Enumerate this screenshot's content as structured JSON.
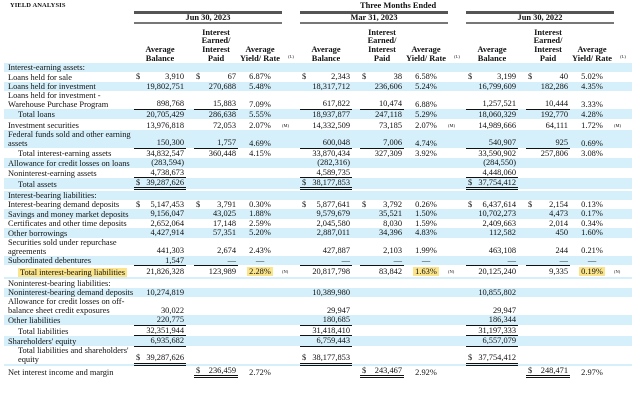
{
  "title": "YIELD ANALYSIS",
  "super_header": "Three Months Ended",
  "periods": [
    "Jun 30, 2023",
    "Mar 31, 2023",
    "Jun 30, 2022"
  ],
  "col_headers": {
    "balance": "Average Balance",
    "interest": "Interest Earned/ Interest Paid",
    "rate": "Average Yield/ Rate",
    "note": "(L)"
  },
  "highlight_color": "#fbe48a",
  "stripe_color": "#d5f0fb",
  "rows": [
    {
      "label": "Interest-earning assets:",
      "p": []
    },
    {
      "label": "Loans held for sale",
      "p": [
        {
          "bc": "$",
          "b": "3,910",
          "ic": "$",
          "i": "67",
          "r": "6.87%"
        },
        {
          "bc": "$",
          "b": "2,343",
          "ic": "$",
          "i": "38",
          "r": "6.58%"
        },
        {
          "bc": "$",
          "b": "3,199",
          "ic": "$",
          "i": "40",
          "r": "5.02%"
        }
      ]
    },
    {
      "label": "Loans held for investment",
      "p": [
        {
          "b": "19,802,751",
          "i": "270,688",
          "r": "5.48%"
        },
        {
          "b": "18,317,712",
          "i": "236,606",
          "r": "5.24%"
        },
        {
          "b": "16,799,609",
          "i": "182,286",
          "r": "4.35%"
        }
      ]
    },
    {
      "label": "Loans held for investment - Warehouse Purchase Program",
      "rule": "single",
      "p": [
        {
          "b": "898,768",
          "i": "15,883",
          "r": "7.09%"
        },
        {
          "b": "617,822",
          "i": "10,474",
          "r": "6.88%"
        },
        {
          "b": "1,257,521",
          "i": "10,444",
          "r": "3.33%"
        }
      ]
    },
    {
      "label": "Total loans",
      "indent": true,
      "p": [
        {
          "b": "20,705,429",
          "i": "286,638",
          "r": "5.55%"
        },
        {
          "b": "18,937,877",
          "i": "247,118",
          "r": "5.29%"
        },
        {
          "b": "18,060,329",
          "i": "192,770",
          "r": "4.28%"
        }
      ]
    },
    {
      "label": "Investment securities",
      "p": [
        {
          "b": "13,976,818",
          "i": "72,053",
          "r": "2.07%",
          "n": "(M)"
        },
        {
          "b": "14,332,509",
          "i": "73,185",
          "r": "2.07%",
          "n": "(M)"
        },
        {
          "b": "14,989,666",
          "i": "64,111",
          "r": "1.72%",
          "n": "(M)"
        }
      ]
    },
    {
      "label": "Federal funds sold and other earning assets",
      "rule": "single",
      "p": [
        {
          "b": "150,300",
          "i": "1,757",
          "r": "4.69%"
        },
        {
          "b": "600,048",
          "i": "7,006",
          "r": "4.74%"
        },
        {
          "b": "540,907",
          "i": "925",
          "r": "0.69%"
        }
      ]
    },
    {
      "label": "Total interest-earning assets",
      "indent": true,
      "p": [
        {
          "b": "34,832,547",
          "i": "360,448",
          "r": "4.15%"
        },
        {
          "b": "33,870,434",
          "i": "327,309",
          "r": "3.92%"
        },
        {
          "b": "33,590,902",
          "i": "257,806",
          "r": "3.08%"
        }
      ]
    },
    {
      "label": "Allowance for credit losses on loans",
      "p": [
        {
          "b": "(283,594)"
        },
        {
          "b": "(282,316)"
        },
        {
          "b": "(284,550)"
        }
      ]
    },
    {
      "label": "Noninterest-earning assets",
      "rule": "single",
      "p": [
        {
          "b": "4,738,673"
        },
        {
          "b": "4,589,735"
        },
        {
          "b": "4,448,060"
        }
      ]
    },
    {
      "label": "Total assets",
      "indent": true,
      "rule": "double",
      "p": [
        {
          "bc": "$",
          "b": "39,287,626"
        },
        {
          "bc": "$",
          "b": "38,177,853"
        },
        {
          "bc": "$",
          "b": "37,754,412"
        }
      ]
    },
    {
      "label": "",
      "p": []
    },
    {
      "label": "Interest-bearing liabilities:",
      "p": []
    },
    {
      "label": "Interest-bearing demand deposits",
      "p": [
        {
          "bc": "$",
          "b": "5,147,453",
          "ic": "$",
          "i": "3,791",
          "r": "0.30%"
        },
        {
          "bc": "$",
          "b": "5,877,641",
          "ic": "$",
          "i": "3,792",
          "r": "0.26%"
        },
        {
          "bc": "$",
          "b": "6,437,614",
          "ic": "$",
          "i": "2,154",
          "r": "0.13%"
        }
      ]
    },
    {
      "label": "Savings and money market deposits",
      "p": [
        {
          "b": "9,156,047",
          "i": "43,025",
          "r": "1.88%"
        },
        {
          "b": "9,579,679",
          "i": "35,521",
          "r": "1.50%"
        },
        {
          "b": "10,702,273",
          "i": "4,473",
          "r": "0.17%"
        }
      ]
    },
    {
      "label": "Certificates and other time deposits",
      "p": [
        {
          "b": "2,652,064",
          "i": "17,148",
          "r": "2.59%"
        },
        {
          "b": "2,045,580",
          "i": "8,030",
          "r": "1.59%"
        },
        {
          "b": "2,409,663",
          "i": "2,014",
          "r": "0.34%"
        }
      ]
    },
    {
      "label": "Other borrowings",
      "p": [
        {
          "b": "4,427,914",
          "i": "57,351",
          "r": "5.20%"
        },
        {
          "b": "2,887,011",
          "i": "34,396",
          "r": "4.83%"
        },
        {
          "b": "112,582",
          "i": "450",
          "r": "1.60%"
        }
      ]
    },
    {
      "label": "Securities sold under repurchase agreements",
      "p": [
        {
          "b": "441,303",
          "i": "2,674",
          "r": "2.43%"
        },
        {
          "b": "427,887",
          "i": "2,103",
          "r": "1.99%"
        },
        {
          "b": "463,108",
          "i": "244",
          "r": "0.21%"
        }
      ]
    },
    {
      "label": "Subordinated debentures",
      "rule": "single",
      "p": [
        {
          "b": "1,547",
          "i": "—",
          "r": "—"
        },
        {
          "b": "—",
          "i": "—",
          "r": "—"
        },
        {
          "b": "—",
          "i": "—",
          "r": "—"
        }
      ]
    },
    {
      "label": "Total interest-bearing liabilities",
      "indent": true,
      "highlight": true,
      "p": [
        {
          "b": "21,826,328",
          "i": "123,989",
          "r": "2.28%",
          "n": "(N)"
        },
        {
          "b": "20,817,798",
          "i": "83,842",
          "r": "1.63%",
          "n": "(N)"
        },
        {
          "b": "20,125,240",
          "i": "9,335",
          "r": "0.19%",
          "n": "(N)"
        }
      ]
    },
    {
      "label": "",
      "p": []
    },
    {
      "label": "Noninterest-bearing liabilities:",
      "p": []
    },
    {
      "label": "Noninterest-bearing demand deposits",
      "p": [
        {
          "b": "10,274,819"
        },
        {
          "b": "10,389,980"
        },
        {
          "b": "10,855,802"
        }
      ]
    },
    {
      "label": "Allowance for credit losses on off-balance sheet credit exposures",
      "p": [
        {
          "b": "30,022"
        },
        {
          "b": "29,947"
        },
        {
          "b": "29,947"
        }
      ]
    },
    {
      "label": "Other liabilities",
      "rule": "single",
      "p": [
        {
          "b": "220,775"
        },
        {
          "b": "180,685"
        },
        {
          "b": "186,344"
        }
      ]
    },
    {
      "label": "Total liabilities",
      "indent": true,
      "rule": "single",
      "p": [
        {
          "b": "32,351,944"
        },
        {
          "b": "31,418,410"
        },
        {
          "b": "31,197,333"
        }
      ]
    },
    {
      "label": "Shareholders' equity",
      "rule": "single",
      "p": [
        {
          "b": "6,935,682"
        },
        {
          "b": "6,759,443"
        },
        {
          "b": "6,557,079"
        }
      ]
    },
    {
      "label": "Total liabilities and shareholders' equity",
      "indent": true,
      "rule": "double",
      "p": [
        {
          "bc": "$",
          "b": "39,287,626"
        },
        {
          "bc": "$",
          "b": "38,177,853"
        },
        {
          "bc": "$",
          "b": "37,754,412"
        }
      ]
    },
    {
      "label": "",
      "p": []
    },
    {
      "label": "Net interest income and margin",
      "irule": "double",
      "p": [
        {
          "ic": "$",
          "i": "236,459",
          "r": "2.72%"
        },
        {
          "ic": "$",
          "i": "243,467",
          "r": "2.92%"
        },
        {
          "ic": "$",
          "i": "248,471",
          "r": "2.97%"
        }
      ]
    }
  ]
}
